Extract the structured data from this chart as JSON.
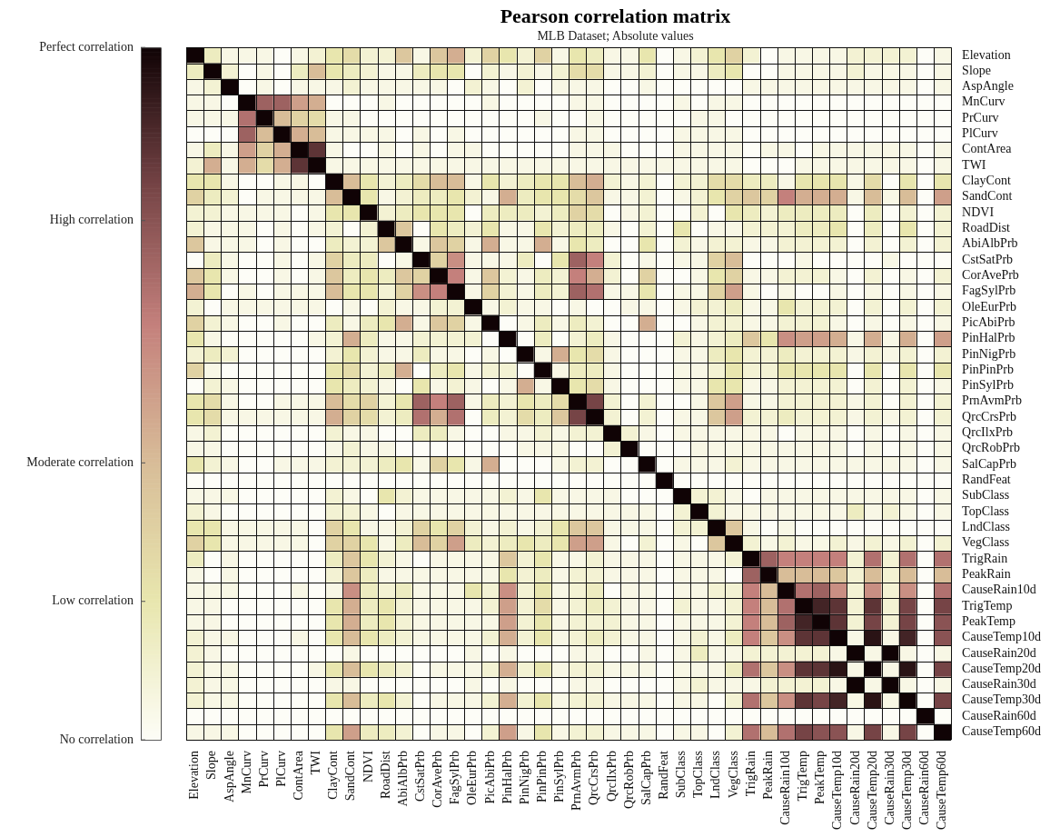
{
  "chart_data": {
    "type": "heatmap",
    "title": "Pearson correlation matrix",
    "subtitle": "MLB Dataset; Absolute values",
    "categories": [
      "Elevation",
      "Slope",
      "AspAngle",
      "MnCurv",
      "PrCurv",
      "PlCurv",
      "ContArea",
      "TWI",
      "ClayCont",
      "SandCont",
      "NDVI",
      "RoadDist",
      "AbiAlbPrb",
      "CstSatPrb",
      "CorAvePrb",
      "FagSylPrb",
      "OleEurPrb",
      "PicAbiPrb",
      "PinHalPrb",
      "PinNigPrb",
      "PinPinPrb",
      "PinSylPrb",
      "PrnAvmPrb",
      "QrcCrsPrb",
      "QrcIlxPrb",
      "QrcRobPrb",
      "SalCapPrb",
      "RandFeat",
      "SubClass",
      "TopClass",
      "LndClass",
      "VegClass",
      "TrigRain",
      "PeakRain",
      "CauseRain10d",
      "TrigTemp",
      "PeakTemp",
      "CauseTemp10d",
      "CauseRain20d",
      "CauseTemp20d",
      "CauseRain30d",
      "CauseTemp30d",
      "CauseRain60d",
      "CauseTemp60d"
    ],
    "y_categories": [
      "Elevation",
      "Slope",
      "AspAngle",
      "MnCurv",
      "PrCurv",
      "PlCurv",
      "ContArea",
      "TWI",
      "ClayCont",
      "SandCont",
      "NDVI",
      "RoadDist",
      "AbiAlbPrb",
      "CstSatPrb",
      "CorAvePrb",
      "FagSylPrb",
      "OleEurPrb",
      "PicAbiPrb",
      "PinHalPrb",
      "PinNigPrb",
      "PinPinPrb",
      "PinSylPrb",
      "PrnAvmPrb",
      "QrcCrsPrb",
      "QrcIlxPrb",
      "QrcRobPrb",
      "SalCapPrb",
      "RandFeat",
      "SubClass",
      "TopClass",
      "LndClass",
      "VegClass",
      "TrigRain",
      "PeakRain",
      "CauseRain10d",
      "TrigTemp",
      "PeakTemp",
      "CauseTemp10d",
      "CauseRain20d",
      "CauseTemp20d",
      "CauseRain30d",
      "CauseTemp30d",
      "CauseRain60d",
      "CauseTemp60d"
    ],
    "clim": [
      0,
      1
    ],
    "cticks": [
      {
        "value": 0,
        "label": "No correlation"
      },
      {
        "value": 0.2,
        "label": "Low correlation"
      },
      {
        "value": 0.4,
        "label": "Moderate correlation"
      },
      {
        "value": 0.75,
        "label": "High correlation"
      },
      {
        "value": 1,
        "label": "Perfect correlation"
      }
    ],
    "cells": [
      [
        1,
        0.15,
        0.05,
        0.05,
        0.05,
        0,
        0.05,
        0.1,
        0.2,
        0.25,
        0.1,
        0.1,
        0.35,
        0.05,
        0.35,
        0.45,
        0.1,
        0.3,
        0.2,
        0.1,
        0.3,
        0.05,
        0.2,
        0.15,
        0.05,
        0.05,
        0.2,
        0,
        0.05,
        0.1,
        0.2,
        0.3,
        0.1,
        0,
        0.05,
        0.05,
        0.05,
        0.05,
        0.1,
        0.1,
        0.1,
        0.1,
        0,
        0.05
      ],
      [
        0.15,
        1,
        0.1,
        0,
        0.05,
        0,
        0.15,
        0.4,
        0.2,
        0.15,
        0.1,
        0.05,
        0.05,
        0.15,
        0.2,
        0.2,
        0,
        0.1,
        0.05,
        0.1,
        0.05,
        0.1,
        0.25,
        0.25,
        0.05,
        0.05,
        0.1,
        0,
        0.05,
        0.05,
        0.15,
        0.2,
        0,
        0,
        0.05,
        0.05,
        0.05,
        0.05,
        0.1,
        0.05,
        0.05,
        0.05,
        0,
        0.05
      ],
      [
        0.05,
        0.1,
        1,
        0,
        0.05,
        0,
        0.05,
        0.05,
        0.05,
        0.1,
        0.05,
        0.05,
        0.05,
        0.05,
        0.05,
        0,
        0.1,
        0.05,
        0,
        0.1,
        0,
        0.05,
        0.05,
        0.05,
        0,
        0,
        0.05,
        0,
        0,
        0,
        0,
        0,
        0.05,
        0.05,
        0.05,
        0.05,
        0.05,
        0.05,
        0.05,
        0.05,
        0.05,
        0.05,
        0,
        0.05
      ],
      [
        0.05,
        0.05,
        0,
        1,
        0.7,
        0.7,
        0.5,
        0.45,
        0,
        0,
        0,
        0.05,
        0,
        0,
        0,
        0,
        0,
        0.05,
        0,
        0,
        0,
        0,
        0.05,
        0.05,
        0,
        0,
        0,
        0,
        0.05,
        0,
        0.05,
        0.05,
        0,
        0,
        0,
        0,
        0,
        0,
        0,
        0,
        0,
        0,
        0,
        0
      ],
      [
        0.05,
        0.05,
        0.05,
        0.65,
        1,
        0.4,
        0.3,
        0.25,
        0.05,
        0.05,
        0,
        0,
        0,
        0,
        0,
        0,
        0,
        0,
        0,
        0,
        0.05,
        0,
        0,
        0.05,
        0,
        0,
        0,
        0,
        0,
        0.05,
        0.05,
        0,
        0,
        0,
        0,
        0,
        0,
        0,
        0,
        0,
        0,
        0,
        0,
        0
      ],
      [
        0,
        0,
        0,
        0.7,
        0.4,
        1,
        0.45,
        0.4,
        0.05,
        0.05,
        0.05,
        0.05,
        0,
        0.05,
        0,
        0.05,
        0,
        0,
        0,
        0,
        0,
        0,
        0.05,
        0.05,
        0,
        0,
        0,
        0,
        0.05,
        0.05,
        0.05,
        0.05,
        0,
        0,
        0,
        0,
        0,
        0,
        0,
        0,
        0,
        0,
        0,
        0
      ],
      [
        0.05,
        0.15,
        0.05,
        0.5,
        0.3,
        0.45,
        1,
        0.85,
        0.05,
        0,
        0,
        0.05,
        0,
        0.05,
        0,
        0.05,
        0.05,
        0,
        0,
        0,
        0,
        0,
        0.05,
        0.05,
        0.05,
        0,
        0,
        0,
        0.05,
        0.05,
        0.05,
        0.05,
        0,
        0.05,
        0.05,
        0,
        0.05,
        0.05,
        0.05,
        0.05,
        0.05,
        0.05,
        0,
        0.05
      ],
      [
        0.1,
        0.45,
        0.05,
        0.45,
        0.25,
        0.45,
        0.85,
        1,
        0.05,
        0.05,
        0.05,
        0.05,
        0.05,
        0.05,
        0.05,
        0.05,
        0.05,
        0.05,
        0.05,
        0.05,
        0.05,
        0.05,
        0.05,
        0.05,
        0.05,
        0.05,
        0.05,
        0.05,
        0.05,
        0.05,
        0.05,
        0.05,
        0,
        0,
        0,
        0.05,
        0.05,
        0.05,
        0.05,
        0.05,
        0.05,
        0.05,
        0,
        0.05
      ],
      [
        0.2,
        0.2,
        0.05,
        0,
        0,
        0.05,
        0.05,
        0,
        1,
        0.4,
        0.2,
        0.1,
        0.15,
        0.25,
        0.4,
        0.4,
        0.05,
        0.2,
        0.1,
        0.15,
        0.2,
        0.2,
        0.4,
        0.45,
        0.1,
        0.05,
        0.1,
        0,
        0.1,
        0.1,
        0.25,
        0.25,
        0.15,
        0.15,
        0.05,
        0.2,
        0.2,
        0.2,
        0.05,
        0.25,
        0,
        0.2,
        0,
        0.2
      ],
      [
        0.3,
        0.15,
        0.1,
        0,
        0.05,
        0.05,
        0.05,
        0.05,
        0.4,
        1,
        0.2,
        0.05,
        0.1,
        0.15,
        0.15,
        0.2,
        0.1,
        0.05,
        0.45,
        0.15,
        0.2,
        0.2,
        0.25,
        0.35,
        0.05,
        0.05,
        0.1,
        0,
        0.05,
        0.1,
        0.2,
        0.3,
        0.35,
        0.3,
        0.6,
        0.45,
        0.45,
        0.45,
        0.05,
        0.4,
        0.05,
        0.4,
        0,
        0.5
      ],
      [
        0.1,
        0.1,
        0.05,
        0.05,
        0.05,
        0.05,
        0,
        0.05,
        0.2,
        0.2,
        1,
        0.1,
        0.15,
        0.2,
        0.2,
        0.2,
        0,
        0.15,
        0.15,
        0.15,
        0.1,
        0.15,
        0.3,
        0.25,
        0,
        0.05,
        0.1,
        0,
        0,
        0.1,
        0,
        0.2,
        0.15,
        0.1,
        0.15,
        0.15,
        0.15,
        0.15,
        0,
        0.15,
        0,
        0.1,
        0,
        0.1
      ],
      [
        0.1,
        0.05,
        0.05,
        0.05,
        0,
        0.05,
        0,
        0.05,
        0.1,
        0,
        0.1,
        1,
        0.35,
        0,
        0.2,
        0.15,
        0.1,
        0.2,
        0.05,
        0.05,
        0.2,
        0.1,
        0.15,
        0.15,
        0.05,
        0,
        0.1,
        0,
        0.2,
        0,
        0.05,
        0.05,
        0.1,
        0.1,
        0.1,
        0.15,
        0.15,
        0.2,
        0,
        0.15,
        0,
        0.2,
        0,
        0.1
      ],
      [
        0.35,
        0.05,
        0.05,
        0.05,
        0,
        0.05,
        0,
        0,
        0.15,
        0.1,
        0.1,
        0.35,
        1,
        0.05,
        0.35,
        0.3,
        0.05,
        0.45,
        0.05,
        0.05,
        0.45,
        0.05,
        0.2,
        0.15,
        0,
        0,
        0.2,
        0,
        0.1,
        0.05,
        0.1,
        0.1,
        0.05,
        0.05,
        0.1,
        0.1,
        0.1,
        0.1,
        0,
        0.1,
        0,
        0.1,
        0,
        0.1
      ],
      [
        0,
        0.15,
        0.05,
        0,
        0,
        0.05,
        0,
        0.05,
        0.3,
        0.15,
        0.15,
        0,
        0.05,
        1,
        0.3,
        0.55,
        0.05,
        0.05,
        0.05,
        0.15,
        0,
        0.2,
        0.7,
        0.6,
        0.1,
        0,
        0.05,
        0,
        0.05,
        0.05,
        0.3,
        0.4,
        0,
        0,
        0,
        0.05,
        0,
        0,
        0,
        0,
        0.05,
        0,
        0,
        0
      ],
      [
        0.35,
        0.2,
        0.05,
        0,
        0,
        0.05,
        0,
        0.05,
        0.35,
        0.15,
        0.2,
        0.15,
        0.35,
        0.3,
        1,
        0.6,
        0.05,
        0.35,
        0.1,
        0.05,
        0.15,
        0.1,
        0.6,
        0.45,
        0.1,
        0,
        0.3,
        0,
        0,
        0.05,
        0.2,
        0.3,
        0.05,
        0.05,
        0.1,
        0.1,
        0.1,
        0.05,
        0,
        0.1,
        0,
        0.05,
        0,
        0.1
      ],
      [
        0.45,
        0.2,
        0,
        0.05,
        0,
        0.05,
        0.05,
        0.05,
        0.4,
        0.2,
        0.2,
        0.1,
        0.3,
        0.55,
        0.6,
        1,
        0.05,
        0.3,
        0.1,
        0.05,
        0.15,
        0.1,
        0.7,
        0.65,
        0.05,
        0.05,
        0.2,
        0,
        0.05,
        0.05,
        0.3,
        0.5,
        0.05,
        0,
        0.05,
        0,
        0,
        0.05,
        0,
        0.05,
        0,
        0.05,
        0,
        0.05
      ],
      [
        0.1,
        0,
        0.05,
        0.05,
        0.05,
        0.05,
        0.05,
        0.05,
        0,
        0.05,
        0,
        0.1,
        0.05,
        0.05,
        0.1,
        0.1,
        1,
        0.05,
        0.1,
        0.05,
        0.05,
        0,
        0.05,
        0,
        0,
        0.05,
        0.05,
        0,
        0.05,
        0.1,
        0.1,
        0.15,
        0.05,
        0.05,
        0.2,
        0.1,
        0.1,
        0.1,
        0,
        0.1,
        0,
        0.1,
        0,
        0.1
      ],
      [
        0.3,
        0.1,
        0.05,
        0,
        0,
        0.05,
        0,
        0,
        0.15,
        0.05,
        0.15,
        0.2,
        0.45,
        0.05,
        0.35,
        0.3,
        0.05,
        1,
        0,
        0.05,
        0.15,
        0.05,
        0.15,
        0.1,
        0,
        0,
        0.45,
        0,
        0,
        0.05,
        0.1,
        0.1,
        0.05,
        0.05,
        0.1,
        0.1,
        0.1,
        0.05,
        0,
        0.05,
        0,
        0.05,
        0,
        0.05
      ],
      [
        0.2,
        0.05,
        0,
        0,
        0,
        0,
        0,
        0.05,
        0.1,
        0.45,
        0.15,
        0.05,
        0.05,
        0.1,
        0.1,
        0.1,
        0.1,
        0,
        1,
        0,
        0.15,
        0,
        0.1,
        0.15,
        0.05,
        0,
        0,
        0,
        0.1,
        0.05,
        0.1,
        0.15,
        0.35,
        0.2,
        0.55,
        0.5,
        0.5,
        0.45,
        0.05,
        0.45,
        0.05,
        0.45,
        0,
        0.5
      ],
      [
        0.1,
        0.15,
        0.1,
        0,
        0,
        0,
        0,
        0,
        0.1,
        0.2,
        0.1,
        0.05,
        0.05,
        0.15,
        0.05,
        0.05,
        0,
        0.05,
        0,
        1,
        0.05,
        0.45,
        0.2,
        0.25,
        0.05,
        0,
        0,
        0,
        0.05,
        0.05,
        0.15,
        0.2,
        0.1,
        0.1,
        0.15,
        0.1,
        0.1,
        0.1,
        0.05,
        0.1,
        0.05,
        0.1,
        0,
        0.1
      ],
      [
        0.3,
        0.05,
        0,
        0,
        0,
        0,
        0,
        0,
        0.2,
        0.25,
        0.1,
        0.15,
        0.45,
        0,
        0.15,
        0.2,
        0.05,
        0.1,
        0.1,
        0,
        1,
        0.05,
        0.15,
        0.15,
        0.05,
        0,
        0,
        0,
        0.05,
        0.05,
        0.1,
        0.2,
        0.1,
        0.1,
        0.2,
        0.2,
        0.2,
        0.2,
        0,
        0.2,
        0,
        0.2,
        0,
        0.2
      ],
      [
        0,
        0.1,
        0.05,
        0,
        0,
        0,
        0,
        0,
        0.2,
        0.15,
        0.1,
        0.05,
        0,
        0.2,
        0.05,
        0.1,
        0.05,
        0,
        0.05,
        0.45,
        0.05,
        1,
        0.2,
        0.25,
        0.05,
        0,
        0,
        0,
        0.05,
        0.05,
        0.2,
        0.2,
        0.05,
        0.05,
        0.1,
        0.1,
        0.1,
        0.1,
        0,
        0.1,
        0,
        0.1,
        0,
        0.05
      ],
      [
        0.2,
        0.25,
        0.05,
        0,
        0,
        0.05,
        0.05,
        0.05,
        0.4,
        0.25,
        0.3,
        0.1,
        0.2,
        0.7,
        0.6,
        0.7,
        0.05,
        0.15,
        0.1,
        0.2,
        0.15,
        0.25,
        1,
        0.8,
        0.1,
        0,
        0.1,
        0,
        0,
        0.05,
        0.35,
        0.5,
        0.05,
        0.05,
        0.1,
        0.1,
        0.1,
        0.1,
        0.05,
        0.1,
        0,
        0.1,
        0,
        0.1
      ],
      [
        0.2,
        0.25,
        0.05,
        0.05,
        0.05,
        0.05,
        0.05,
        0.05,
        0.45,
        0.3,
        0.25,
        0.1,
        0.15,
        0.65,
        0.45,
        0.65,
        0,
        0.15,
        0.1,
        0.25,
        0.15,
        0.35,
        0.8,
        1,
        0.1,
        0,
        0.1,
        0,
        0.05,
        0.05,
        0.35,
        0.5,
        0.1,
        0.1,
        0.15,
        0.1,
        0.1,
        0.1,
        0.05,
        0.1,
        0.05,
        0.1,
        0,
        0.1
      ],
      [
        0.05,
        0.1,
        0,
        0,
        0,
        0,
        0,
        0,
        0.1,
        0.05,
        0.05,
        0,
        0,
        0.15,
        0.15,
        0.05,
        0,
        0,
        0.05,
        0.05,
        0.1,
        0.05,
        0.1,
        0.1,
        1,
        0.1,
        0.05,
        0,
        0.05,
        0.05,
        0.05,
        0.05,
        0.05,
        0.05,
        0,
        0.05,
        0.05,
        0.05,
        0,
        0.05,
        0,
        0.05,
        0,
        0.05
      ],
      [
        0.05,
        0.05,
        0,
        0,
        0,
        0,
        0,
        0,
        0.05,
        0.1,
        0.05,
        0.05,
        0,
        0,
        0,
        0,
        0,
        0,
        0,
        0.05,
        0.05,
        0.05,
        0,
        0,
        0.1,
        1,
        0,
        0,
        0,
        0.05,
        0.05,
        0.05,
        0.05,
        0.05,
        0.05,
        0.05,
        0.05,
        0.05,
        0,
        0.05,
        0,
        0.05,
        0,
        0.05
      ],
      [
        0.2,
        0.1,
        0.05,
        0,
        0,
        0.05,
        0.05,
        0.05,
        0.1,
        0.1,
        0.1,
        0.15,
        0.2,
        0.05,
        0.3,
        0.2,
        0.05,
        0.45,
        0,
        0,
        0,
        0.05,
        0.1,
        0.1,
        0,
        0,
        1,
        0,
        0.05,
        0.05,
        0.05,
        0.1,
        0.05,
        0.05,
        0.05,
        0.05,
        0.05,
        0.05,
        0.05,
        0.05,
        0.05,
        0.05,
        0,
        0.05
      ],
      [
        0,
        0,
        0,
        0,
        0,
        0,
        0,
        0,
        0,
        0,
        0,
        0,
        0,
        0,
        0,
        0,
        0,
        0,
        0,
        0,
        0,
        0,
        0,
        0,
        0,
        0,
        0,
        1,
        0,
        0,
        0,
        0,
        0,
        0,
        0,
        0,
        0,
        0,
        0,
        0,
        0,
        0,
        0,
        0
      ],
      [
        0.05,
        0.05,
        0.05,
        0,
        0,
        0,
        0,
        0,
        0.1,
        0.05,
        0,
        0.2,
        0.1,
        0.05,
        0.05,
        0.05,
        0.05,
        0.05,
        0.1,
        0.05,
        0.2,
        0.05,
        0.05,
        0.05,
        0.05,
        0,
        0,
        0,
        1,
        0.1,
        0.1,
        0.05,
        0,
        0.05,
        0.05,
        0.05,
        0.05,
        0.05,
        0.05,
        0.05,
        0.05,
        0.05,
        0,
        0.05
      ],
      [
        0.1,
        0.05,
        0,
        0,
        0,
        0,
        0,
        0,
        0.1,
        0.1,
        0.05,
        0,
        0.05,
        0.05,
        0.05,
        0.05,
        0.05,
        0.05,
        0.05,
        0.05,
        0.05,
        0.05,
        0.05,
        0.05,
        0.05,
        0.05,
        0.05,
        0,
        0.1,
        1,
        0.1,
        0.05,
        0.05,
        0.05,
        0.05,
        0.05,
        0.05,
        0.05,
        0.15,
        0.05,
        0.1,
        0.05,
        0,
        0.05
      ],
      [
        0.2,
        0.2,
        0.05,
        0.05,
        0.05,
        0.05,
        0.05,
        0,
        0.3,
        0.2,
        0.05,
        0.05,
        0.1,
        0.3,
        0.2,
        0.3,
        0.1,
        0.05,
        0.1,
        0.05,
        0.1,
        0.2,
        0.35,
        0.35,
        0.05,
        0.05,
        0.05,
        0,
        0.1,
        0.1,
        1,
        0.35,
        0.05,
        0,
        0.05,
        0,
        0,
        0,
        0,
        0,
        0,
        0,
        0,
        0
      ],
      [
        0.3,
        0.2,
        0.05,
        0.05,
        0.05,
        0.05,
        0.05,
        0,
        0.3,
        0.3,
        0.2,
        0.05,
        0.15,
        0.4,
        0.3,
        0.5,
        0.15,
        0.1,
        0.15,
        0.2,
        0.15,
        0.2,
        0.5,
        0.5,
        0.05,
        0,
        0.1,
        0,
        0.05,
        0,
        0.35,
        1,
        0.1,
        0.05,
        0.1,
        0.05,
        0.05,
        0.1,
        0.05,
        0.1,
        0.05,
        0.1,
        0,
        0.1
      ],
      [
        0.15,
        0,
        0.05,
        0,
        0,
        0,
        0,
        0,
        0.15,
        0.35,
        0.2,
        0.1,
        0.05,
        0,
        0.05,
        0.05,
        0.05,
        0.05,
        0.35,
        0.1,
        0.2,
        0.05,
        0.05,
        0.1,
        0.05,
        0.05,
        0.05,
        0,
        0.05,
        0.05,
        0.05,
        0.1,
        1,
        0.7,
        0.6,
        0.6,
        0.6,
        0.6,
        0.1,
        0.65,
        0.1,
        0.65,
        0,
        0.65
      ],
      [
        0.05,
        0,
        0.05,
        0,
        0,
        0,
        0,
        0,
        0.1,
        0.35,
        0.15,
        0.05,
        0.05,
        0.05,
        0.05,
        0.05,
        0.05,
        0.05,
        0.2,
        0.1,
        0.15,
        0.05,
        0.1,
        0.1,
        0.05,
        0.05,
        0.05,
        0,
        0.05,
        0.05,
        0.05,
        0,
        0.7,
        1,
        0.4,
        0.4,
        0.4,
        0.35,
        0.1,
        0.4,
        0.1,
        0.4,
        0,
        0.4
      ],
      [
        0.05,
        0.05,
        0.05,
        0,
        0,
        0,
        0.05,
        0,
        0.05,
        0.55,
        0.15,
        0.1,
        0.15,
        0.05,
        0.05,
        0.05,
        0.2,
        0.1,
        0.55,
        0.1,
        0.2,
        0.05,
        0.1,
        0.15,
        0,
        0.05,
        0.05,
        0,
        0.05,
        0.05,
        0.1,
        0.1,
        0.6,
        0.4,
        1,
        0.65,
        0.7,
        0.55,
        0.1,
        0.55,
        0.1,
        0.55,
        0,
        0.65
      ],
      [
        0.05,
        0.05,
        0,
        0,
        0,
        0,
        0,
        0,
        0.2,
        0.45,
        0.15,
        0.2,
        0.1,
        0.05,
        0.05,
        0.05,
        0.05,
        0.1,
        0.5,
        0.1,
        0.25,
        0.05,
        0.1,
        0.15,
        0.1,
        0.05,
        0.05,
        0,
        0.1,
        0.05,
        0.05,
        0.1,
        0.6,
        0.4,
        0.65,
        1,
        0.9,
        0.85,
        0.1,
        0.85,
        0.1,
        0.8,
        0,
        0.8
      ],
      [
        0.05,
        0.05,
        0,
        0,
        0,
        0,
        0,
        0,
        0.2,
        0.45,
        0.15,
        0.2,
        0.1,
        0.05,
        0.05,
        0.05,
        0.05,
        0.05,
        0.5,
        0.1,
        0.2,
        0.05,
        0.1,
        0.1,
        0.1,
        0.05,
        0.05,
        0,
        0.05,
        0.05,
        0.05,
        0.1,
        0.6,
        0.4,
        0.7,
        0.9,
        1,
        0.85,
        0.1,
        0.8,
        0.1,
        0.8,
        0,
        0.75
      ],
      [
        0.1,
        0.05,
        0.05,
        0,
        0,
        0,
        0.05,
        0,
        0.2,
        0.4,
        0.2,
        0.15,
        0.1,
        0.05,
        0.05,
        0.05,
        0.05,
        0.1,
        0.45,
        0.1,
        0.2,
        0.05,
        0.1,
        0.15,
        0.1,
        0.05,
        0.05,
        0,
        0.05,
        0.1,
        0.05,
        0.15,
        0.6,
        0.35,
        0.55,
        0.85,
        0.85,
        1,
        0.05,
        0.95,
        0.05,
        0.9,
        0,
        0.75
      ],
      [
        0.1,
        0.05,
        0,
        0,
        0,
        0,
        0,
        0,
        0,
        0.05,
        0,
        0,
        0,
        0,
        0,
        0,
        0.05,
        0,
        0.05,
        0,
        0,
        0,
        0.05,
        0.05,
        0,
        0,
        0.05,
        0,
        0.05,
        0.15,
        0.05,
        0.05,
        0.1,
        0.1,
        0.1,
        0.1,
        0.1,
        0.05,
        1,
        0.05,
        1,
        0.05,
        0,
        0.05
      ],
      [
        0.1,
        0.05,
        0.05,
        0,
        0,
        0,
        0,
        0.05,
        0.2,
        0.4,
        0.2,
        0.15,
        0.1,
        0,
        0.05,
        0.05,
        0.05,
        0.1,
        0.45,
        0.1,
        0.2,
        0.05,
        0.1,
        0.1,
        0.05,
        0.05,
        0.05,
        0,
        0.05,
        0.05,
        0.05,
        0.15,
        0.65,
        0.35,
        0.55,
        0.85,
        0.85,
        0.95,
        0.05,
        1,
        0.05,
        0.95,
        0,
        0.8
      ],
      [
        0.1,
        0.05,
        0.05,
        0,
        0,
        0,
        0,
        0,
        0.05,
        0.05,
        0,
        0,
        0,
        0,
        0,
        0,
        0.05,
        0,
        0.05,
        0,
        0,
        0,
        0.05,
        0.05,
        0,
        0,
        0,
        0,
        0.05,
        0.1,
        0.05,
        0.05,
        0.05,
        0.1,
        0.1,
        0.1,
        0.1,
        0.05,
        1,
        0.05,
        1,
        0.05,
        0,
        0.05
      ],
      [
        0.1,
        0.05,
        0.05,
        0,
        0,
        0,
        0,
        0,
        0.2,
        0.4,
        0.15,
        0.2,
        0.1,
        0,
        0.05,
        0.05,
        0.05,
        0.1,
        0.45,
        0.1,
        0.2,
        0.05,
        0.1,
        0.1,
        0.05,
        0.05,
        0.05,
        0,
        0.05,
        0.05,
        0,
        0.1,
        0.65,
        0.35,
        0.55,
        0.85,
        0.8,
        0.9,
        0.05,
        0.95,
        0.05,
        1,
        0,
        0.8
      ],
      [
        0,
        0,
        0,
        0,
        0,
        0,
        0,
        0,
        0,
        0,
        0,
        0,
        0,
        0,
        0,
        0,
        0,
        0,
        0,
        0,
        0,
        0,
        0,
        0,
        0,
        0,
        0,
        0,
        0,
        0,
        0,
        0,
        0,
        0,
        0,
        0,
        0,
        0,
        0,
        0,
        0,
        0,
        1,
        0
      ],
      [
        0.05,
        0.05,
        0.05,
        0,
        0,
        0,
        0,
        0,
        0.2,
        0.5,
        0.15,
        0.15,
        0.1,
        0,
        0.05,
        0.05,
        0,
        0.1,
        0.5,
        0.05,
        0.2,
        0.05,
        0.1,
        0.1,
        0.05,
        0.05,
        0.05,
        0,
        0.05,
        0.05,
        0,
        0.1,
        0.65,
        0.4,
        0.65,
        0.8,
        0.75,
        0.75,
        0.05,
        0.8,
        0.05,
        0.8,
        0,
        1
      ]
    ]
  }
}
